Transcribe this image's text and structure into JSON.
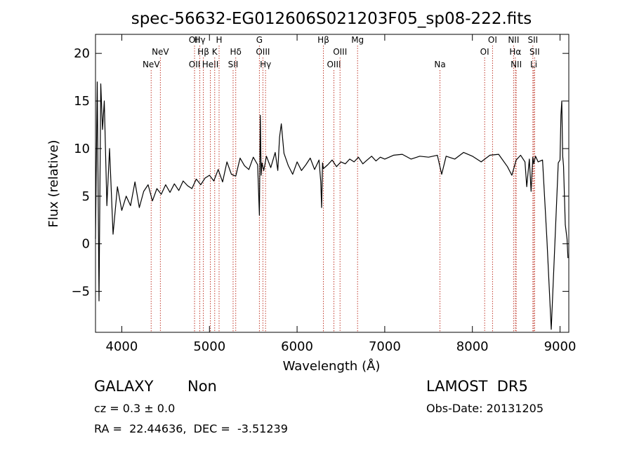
{
  "chart_data": {
    "type": "line",
    "title": "spec-56632-EG012606S021203F05_sp08-222.fits",
    "xlabel": "Wavelength (Å)",
    "ylabel": "Flux (relative)",
    "xlim": [
      3700,
      9100
    ],
    "ylim": [
      -9.3,
      22
    ],
    "xticks": [
      4000,
      5000,
      6000,
      7000,
      8000,
      9000
    ],
    "yticks": [
      -5,
      0,
      5,
      10,
      15,
      20
    ],
    "xtick_labels": [
      "4000",
      "5000",
      "6000",
      "7000",
      "8000",
      "9000"
    ],
    "ytick_labels": [
      "−5",
      "0",
      "5",
      "10",
      "15",
      "20"
    ],
    "line_color": "#000000",
    "marker_color": "#c0392b",
    "spectrum": {
      "x": [
        3700,
        3720,
        3740,
        3760,
        3780,
        3800,
        3830,
        3860,
        3900,
        3950,
        4000,
        4050,
        4100,
        4150,
        4200,
        4250,
        4300,
        4350,
        4400,
        4450,
        4500,
        4550,
        4600,
        4650,
        4700,
        4750,
        4800,
        4850,
        4900,
        4950,
        5000,
        5050,
        5100,
        5150,
        5200,
        5250,
        5300,
        5350,
        5400,
        5450,
        5500,
        5550,
        5570,
        5580,
        5590,
        5600,
        5620,
        5650,
        5700,
        5750,
        5780,
        5800,
        5820,
        5850,
        5900,
        5950,
        6000,
        6050,
        6100,
        6150,
        6200,
        6250,
        6270,
        6280,
        6290,
        6300,
        6350,
        6400,
        6450,
        6500,
        6550,
        6600,
        6650,
        6700,
        6750,
        6800,
        6850,
        6900,
        6950,
        7000,
        7100,
        7200,
        7300,
        7400,
        7500,
        7600,
        7650,
        7700,
        7800,
        7900,
        8000,
        8100,
        8200,
        8300,
        8400,
        8450,
        8500,
        8550,
        8600,
        8620,
        8650,
        8670,
        8690,
        8700,
        8720,
        8750,
        8800,
        8850,
        8900,
        8950,
        8980,
        9000,
        9010,
        9020,
        9030,
        9040,
        9060,
        9080,
        9090
      ],
      "y": [
        0.5,
        17,
        -6,
        16.8,
        12,
        15,
        4,
        10,
        1,
        6,
        3.5,
        5,
        4,
        6.5,
        3.8,
        5.5,
        6.2,
        4.5,
        5.8,
        5.2,
        6.2,
        5.4,
        6.3,
        5.6,
        6.6,
        6.1,
        5.8,
        6.8,
        6.2,
        6.9,
        7.2,
        6.6,
        7.8,
        6.5,
        8.6,
        7.3,
        7.1,
        9,
        8.2,
        7.8,
        9.1,
        8.3,
        3,
        13.5,
        7.2,
        8.5,
        7.7,
        9.2,
        8,
        9.6,
        7.7,
        11.2,
        12.6,
        9.5,
        8.2,
        7.3,
        8.6,
        7.7,
        8.3,
        9,
        7.8,
        8.8,
        6.5,
        3.8,
        8.5,
        7.9,
        8.3,
        8.8,
        8.1,
        8.6,
        8.4,
        8.9,
        8.6,
        9.1,
        8.4,
        8.8,
        9.2,
        8.7,
        9.1,
        8.9,
        9.3,
        9.4,
        8.9,
        9.2,
        9.1,
        9.3,
        7.3,
        9.2,
        8.9,
        9.6,
        9.2,
        8.6,
        9.3,
        9.4,
        8.1,
        7.2,
        8.8,
        9.3,
        8.6,
        6,
        8.9,
        5.5,
        9.1,
        8.4,
        9.2,
        8.6,
        8.8,
        0.5,
        -9,
        2,
        8.5,
        8.8,
        13.5,
        15,
        9.2,
        8.2,
        2,
        0.5,
        -1.5
      ]
    },
    "emission_lines": [
      {
        "label": "NeV",
        "wavelength": 4335,
        "row": 2
      },
      {
        "label": "NeV",
        "wavelength": 4440,
        "row": 1
      },
      {
        "label": "OII",
        "wavelength": 4830,
        "row": 0
      },
      {
        "label": "OII",
        "wavelength": 4830,
        "row": 2
      },
      {
        "label": "Hγ",
        "wavelength": 4890,
        "row": 0
      },
      {
        "label": "Hβ",
        "wavelength": 4930,
        "row": 1
      },
      {
        "label": "HeII",
        "wavelength": 5010,
        "row": 2
      },
      {
        "label": "K",
        "wavelength": 5060,
        "row": 1
      },
      {
        "label": "H",
        "wavelength": 5110,
        "row": 0
      },
      {
        "label": "SII",
        "wavelength": 5270,
        "row": 2
      },
      {
        "label": "Hδ",
        "wavelength": 5300,
        "row": 1
      },
      {
        "label": "G",
        "wavelength": 5570,
        "row": 0
      },
      {
        "label": "OIII",
        "wavelength": 5610,
        "row": 1
      },
      {
        "label": "Hγ",
        "wavelength": 5640,
        "row": 2
      },
      {
        "label": "Hβ",
        "wavelength": 6300,
        "row": 0
      },
      {
        "label": "OIII",
        "wavelength": 6420,
        "row": 2
      },
      {
        "label": "OIII",
        "wavelength": 6490,
        "row": 1
      },
      {
        "label": "Mg",
        "wavelength": 6690,
        "row": 0
      },
      {
        "label": "Na",
        "wavelength": 7630,
        "row": 2
      },
      {
        "label": "OI",
        "wavelength": 8140,
        "row": 1
      },
      {
        "label": "OI",
        "wavelength": 8230,
        "row": 0
      },
      {
        "label": "NII",
        "wavelength": 8470,
        "row": 0
      },
      {
        "label": "Hα",
        "wavelength": 8490,
        "row": 1
      },
      {
        "label": "NII",
        "wavelength": 8500,
        "row": 2
      },
      {
        "label": "SII",
        "wavelength": 8690,
        "row": 0
      },
      {
        "label": "SII",
        "wavelength": 8710,
        "row": 1
      },
      {
        "label": "Li",
        "wavelength": 8700,
        "row": 2
      }
    ]
  },
  "info": {
    "class_label": "GALAXY",
    "subclass_label": "Non",
    "survey_label": "LAMOST  DR5",
    "cz_line": "cz = 0.3 ± 0.0",
    "obs_date_line": "Obs-Date: 20131205",
    "radec_line": "RA =  22.44636,  DEC =  -3.51239"
  }
}
